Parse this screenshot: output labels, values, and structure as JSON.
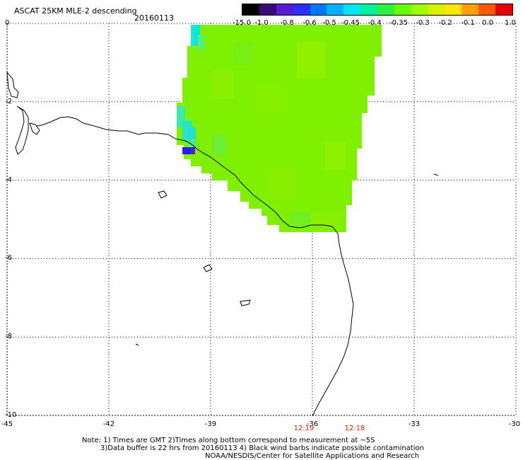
{
  "header": {
    "title": "ASCAT 25KM MLE-2 descending",
    "date": "20160113"
  },
  "colorbar": {
    "labels": [
      "-15.0",
      "-1.0",
      "-0.8",
      "-0.6",
      "-0.5",
      "-0.45",
      "-0.4",
      "-0.35",
      "-0.3",
      "-0.2",
      "-0.1",
      "0.0",
      "1.0"
    ],
    "colors": [
      "#000000",
      "#3a0a7a",
      "#5a1acd",
      "#2d2dff",
      "#0077ff",
      "#00b0ff",
      "#00e6f0",
      "#00f0a0",
      "#2ef03e",
      "#66ff00",
      "#a0ff00",
      "#dcef00",
      "#ffe600",
      "#ffa000",
      "#ff5a00",
      "#e80000"
    ]
  },
  "axes": {
    "lat_labels": [
      "0",
      "-2",
      "-4",
      "-6",
      "-8",
      "-10"
    ],
    "lon_labels": [
      "-45",
      "-42",
      "-39",
      "-36",
      "-33",
      "-30"
    ],
    "lat_range": [
      -10,
      0
    ],
    "lon_range": [
      -45,
      -30
    ],
    "grid": true
  },
  "times": [
    {
      "label": "12:19",
      "lon": -36.0
    },
    {
      "label": "12:18",
      "lon": -34.5
    }
  ],
  "notes": {
    "line1": "Note: 1) Times are GMT 2)Times along bottom correspond to measurement at ~5S",
    "line2": "3)Data buffer is 22 hrs from 20160113 4) Black wind barbs indicate possible contamination",
    "line3": "NOAA/NESDIS/Center for Satellite Applications and Research"
  },
  "swath": {
    "dominant_value": "-0.35",
    "dominant_color": "#7ef000",
    "min_value_color": "#2020ff"
  }
}
